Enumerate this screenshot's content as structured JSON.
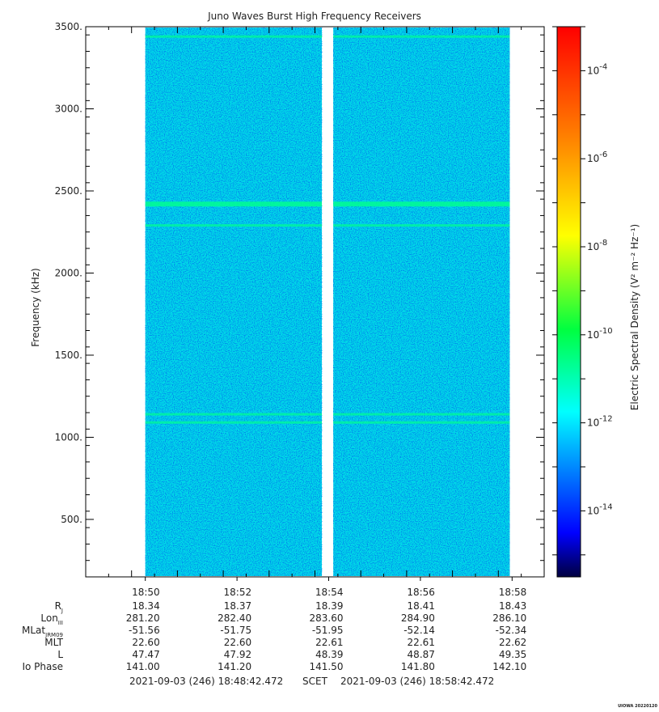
{
  "chart_data": {
    "type": "heatmap",
    "title": "Juno Waves Burst High Frequency Receivers",
    "ylabel": "Frequency (kHz)",
    "ylim": [
      150,
      3500
    ],
    "y_ticks": [
      500,
      1000,
      1500,
      2000,
      2500,
      3000,
      3500
    ],
    "y_tick_labels": [
      "500.",
      "1000.",
      "1500.",
      "2000.",
      "2500.",
      "3000.",
      "3500."
    ],
    "x_ticks": [
      "18:50",
      "18:52",
      "18:54",
      "18:56",
      "18:58"
    ],
    "time_range": [
      "2021-09-03 (246) 18:48:42.472",
      "2021-09-03 (246) 18:58:42.472"
    ],
    "x_range_min": [
      0,
      10
    ],
    "data_intervals_min": [
      [
        1.3,
        5.15
      ],
      [
        5.4,
        9.25
      ]
    ],
    "emission_lines_khz": [
      3440,
      2420,
      2290,
      1140,
      1090
    ],
    "background_level_log": -12.2,
    "colorbar": {
      "label": "Electric Spectral Density (V² m⁻² Hz⁻¹)",
      "log_range": [
        -15.5,
        -3
      ],
      "tick_exponents": [
        -4,
        -6,
        -8,
        -10,
        -12,
        -14
      ],
      "tick_labels": [
        "10-4",
        "10-6",
        "10-8",
        "10-10",
        "10-12",
        "10-14"
      ],
      "colors": [
        "#000080",
        "#0000ff",
        "#00a0ff",
        "#00ffff",
        "#00ff40",
        "#ffff00",
        "#ff8000",
        "#ff0000"
      ]
    },
    "ephemeris": {
      "rows": [
        {
          "name": "R",
          "sub": "J",
          "values": [
            "18.34",
            "18.37",
            "18.39",
            "18.41",
            "18.43"
          ]
        },
        {
          "name": "Lon",
          "sub": "III",
          "values": [
            "281.20",
            "282.40",
            "283.60",
            "284.90",
            "286.10"
          ]
        },
        {
          "name": "MLat",
          "sub": "JRM09",
          "values": [
            "-51.56",
            "-51.75",
            "-51.95",
            "-52.14",
            "-52.34"
          ]
        },
        {
          "name": "MLT",
          "sub": "",
          "values": [
            "22.60",
            "22.60",
            "22.61",
            "22.61",
            "22.62"
          ]
        },
        {
          "name": "L",
          "sub": "",
          "values": [
            "47.47",
            "47.92",
            "48.39",
            "48.87",
            "49.35"
          ]
        },
        {
          "name": "Io Phase",
          "sub": "",
          "values": [
            "141.00",
            "141.20",
            "141.50",
            "141.80",
            "142.10"
          ]
        }
      ]
    },
    "scet_label": "SCET",
    "footer_credit": "UIOWA 20220120"
  }
}
